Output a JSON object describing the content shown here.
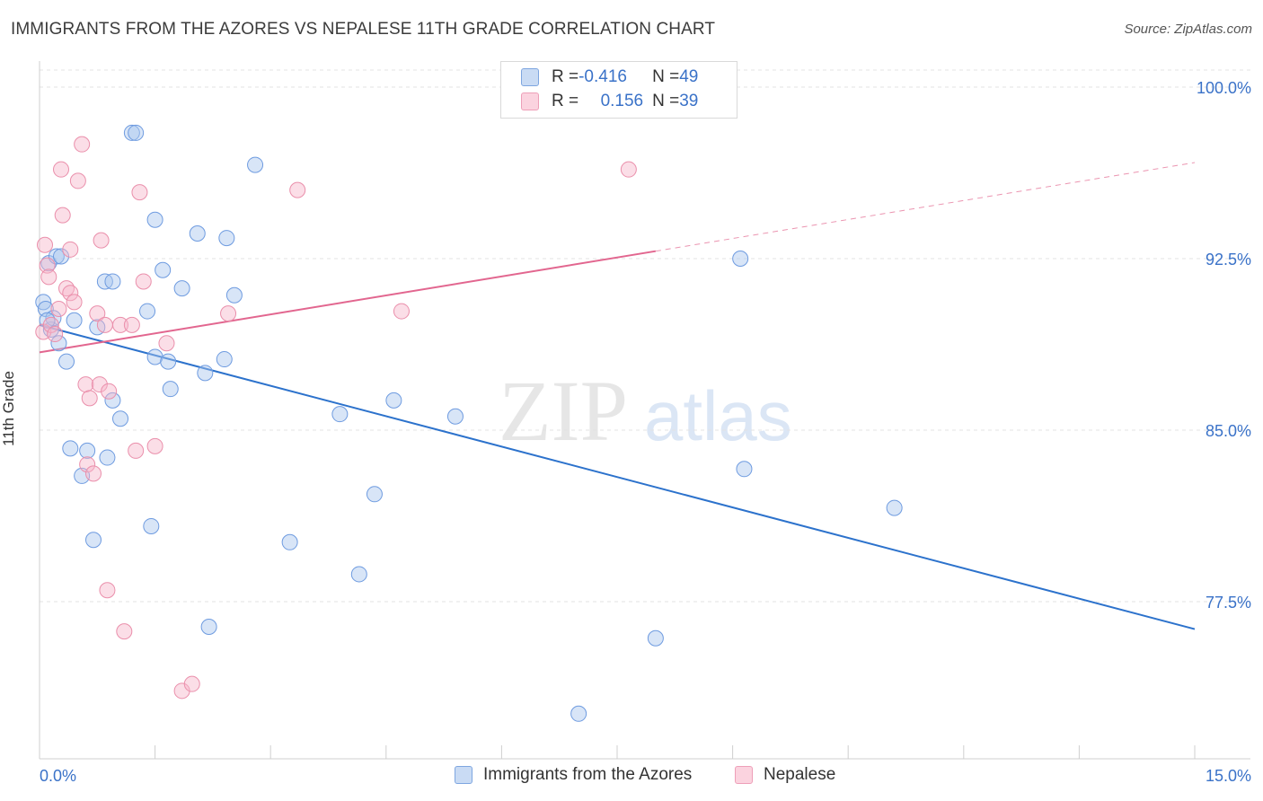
{
  "title": "IMMIGRANTS FROM THE AZORES VS NEPALESE 11TH GRADE CORRELATION CHART",
  "source": "Source: ZipAtlas.com",
  "watermark": {
    "zip": "ZIP",
    "atlas": "atlas"
  },
  "legend": {
    "rows": [
      {
        "r_label": "R = ",
        "r_value": "-0.416",
        "n_label": "N = ",
        "n_value": "49",
        "color": "#a9c6ee"
      },
      {
        "r_label": "R = ",
        "r_value": "0.156",
        "n_label": "N = ",
        "n_value": "39",
        "color": "#f6b6c9"
      }
    ]
  },
  "bottom_legend": [
    {
      "label": "Immigrants from the Azores",
      "color": "#a9c6ee"
    },
    {
      "label": "Nepalese",
      "color": "#f6b6c9"
    }
  ],
  "chart_data": {
    "type": "scatter",
    "xlabel": "",
    "ylabel": "11th Grade",
    "xlim": [
      0,
      15
    ],
    "ylim": [
      71.0,
      100.6
    ],
    "x_tick_labels": [
      "0.0%",
      "15.0%"
    ],
    "y_ticks": [
      {
        "value": 100.0,
        "label": "100.0%"
      },
      {
        "value": 92.5,
        "label": "92.5%"
      },
      {
        "value": 85.0,
        "label": "85.0%"
      },
      {
        "value": 77.5,
        "label": "77.5%"
      }
    ],
    "series": [
      {
        "name": "Immigrants from the Azores",
        "color": "#a9c6ee",
        "stroke": "#6e9be0",
        "line_color": "#2c72cc",
        "trend": {
          "x0": 0.0,
          "y0": 89.6,
          "x1": 15.0,
          "y1": 76.3,
          "dashed_from": null
        },
        "points": [
          [
            0.05,
            90.6
          ],
          [
            0.08,
            90.3
          ],
          [
            0.12,
            92.3
          ],
          [
            0.15,
            89.4
          ],
          [
            0.18,
            89.9
          ],
          [
            0.22,
            92.6
          ],
          [
            0.25,
            88.8
          ],
          [
            0.28,
            92.6
          ],
          [
            0.35,
            88.0
          ],
          [
            0.4,
            84.2
          ],
          [
            0.45,
            89.8
          ],
          [
            0.55,
            83.0
          ],
          [
            0.62,
            84.1
          ],
          [
            0.7,
            80.2
          ],
          [
            0.75,
            89.5
          ],
          [
            0.85,
            91.5
          ],
          [
            0.88,
            83.8
          ],
          [
            0.95,
            86.3
          ],
          [
            1.05,
            85.5
          ],
          [
            1.2,
            98.0
          ],
          [
            1.25,
            98.0
          ],
          [
            1.4,
            90.2
          ],
          [
            1.45,
            80.8
          ],
          [
            1.5,
            94.2
          ],
          [
            1.5,
            88.2
          ],
          [
            1.6,
            92.0
          ],
          [
            1.67,
            88.0
          ],
          [
            1.7,
            86.8
          ],
          [
            1.85,
            91.2
          ],
          [
            2.05,
            93.6
          ],
          [
            2.15,
            87.5
          ],
          [
            2.2,
            76.4
          ],
          [
            2.4,
            88.1
          ],
          [
            2.43,
            93.4
          ],
          [
            2.53,
            90.9
          ],
          [
            2.8,
            96.6
          ],
          [
            3.25,
            80.1
          ],
          [
            3.9,
            85.7
          ],
          [
            4.15,
            78.7
          ],
          [
            4.35,
            82.2
          ],
          [
            4.6,
            86.3
          ],
          [
            5.4,
            85.6
          ],
          [
            7.0,
            72.6
          ],
          [
            8.0,
            75.9
          ],
          [
            9.1,
            92.5
          ],
          [
            9.15,
            83.3
          ],
          [
            11.1,
            81.6
          ],
          [
            0.1,
            89.8
          ],
          [
            0.95,
            91.5
          ]
        ]
      },
      {
        "name": "Nepalese",
        "color": "#f6b6c9",
        "stroke": "#ea8fab",
        "line_color": "#e2668f",
        "trend": {
          "x0": 0.0,
          "y0": 88.4,
          "x1": 15.0,
          "y1": 96.7,
          "dashed_from": 8.0
        },
        "points": [
          [
            0.05,
            89.3
          ],
          [
            0.07,
            93.1
          ],
          [
            0.1,
            92.2
          ],
          [
            0.12,
            91.7
          ],
          [
            0.15,
            89.6
          ],
          [
            0.2,
            89.2
          ],
          [
            0.25,
            90.3
          ],
          [
            0.28,
            96.4
          ],
          [
            0.3,
            94.4
          ],
          [
            0.35,
            91.2
          ],
          [
            0.4,
            91.0
          ],
          [
            0.45,
            90.6
          ],
          [
            0.5,
            95.9
          ],
          [
            0.55,
            97.5
          ],
          [
            0.6,
            87.0
          ],
          [
            0.62,
            83.5
          ],
          [
            0.65,
            86.4
          ],
          [
            0.7,
            83.1
          ],
          [
            0.75,
            90.1
          ],
          [
            0.78,
            87.0
          ],
          [
            0.8,
            93.3
          ],
          [
            0.85,
            89.6
          ],
          [
            0.88,
            78.0
          ],
          [
            0.9,
            86.7
          ],
          [
            1.05,
            89.6
          ],
          [
            1.1,
            76.2
          ],
          [
            1.2,
            89.6
          ],
          [
            1.25,
            84.1
          ],
          [
            1.3,
            95.4
          ],
          [
            1.35,
            91.5
          ],
          [
            1.5,
            84.3
          ],
          [
            1.65,
            88.8
          ],
          [
            1.85,
            73.6
          ],
          [
            1.98,
            73.9
          ],
          [
            2.45,
            90.1
          ],
          [
            3.35,
            95.5
          ],
          [
            4.7,
            90.2
          ],
          [
            7.65,
            96.4
          ],
          [
            0.4,
            92.9
          ]
        ]
      }
    ]
  }
}
